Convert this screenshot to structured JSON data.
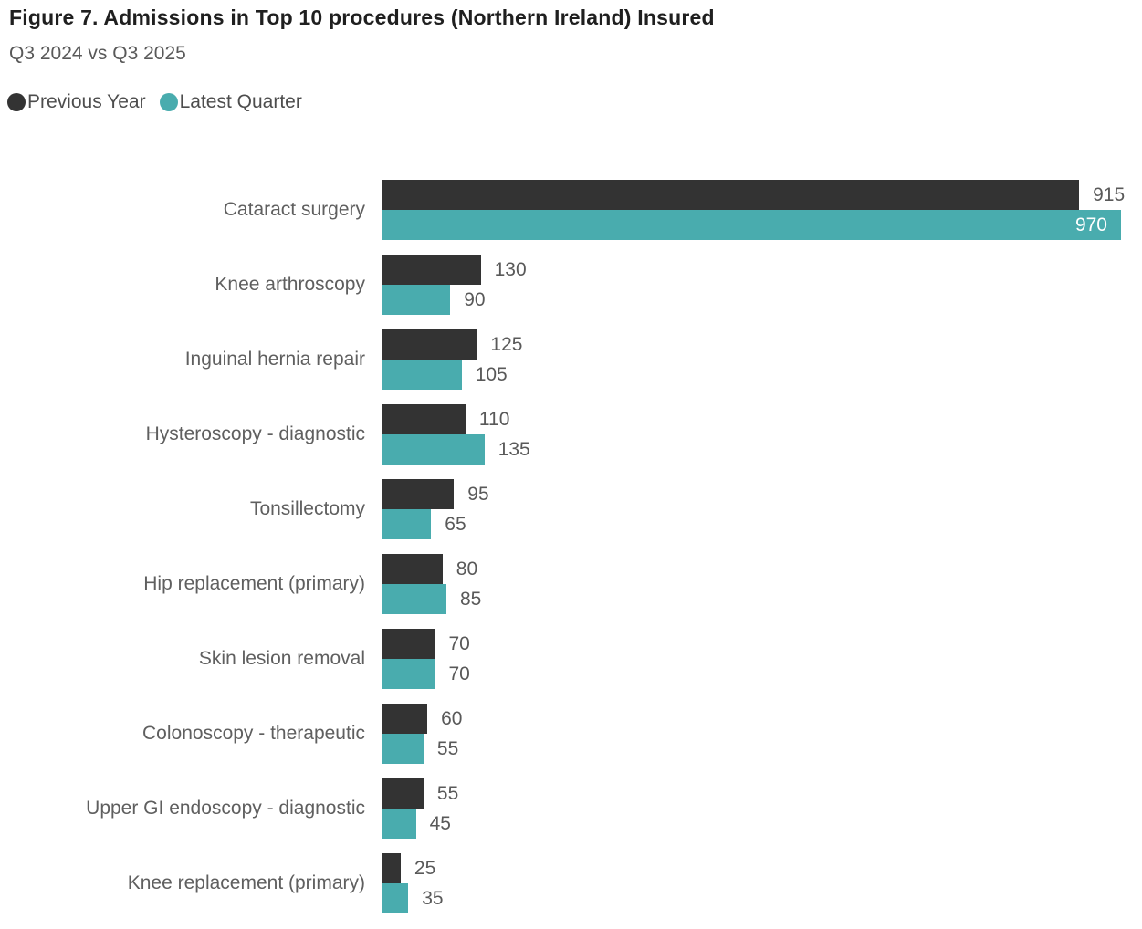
{
  "header": {
    "title": "Figure 7. Admissions in Top 10 procedures (Northern Ireland) Insured",
    "subtitle": "Q3 2024 vs Q3 2025"
  },
  "legend": {
    "items": [
      {
        "label": "Previous Year",
        "color": "#333333"
      },
      {
        "label": "Latest Quarter",
        "color": "#49ACAE"
      }
    ]
  },
  "colors": {
    "previous_year": "#333333",
    "latest_quarter": "#49ACAE",
    "value_label": "#595959",
    "value_label_inside": "#FFFFFF",
    "category_label": "#5F5F5F",
    "title": "#1F1F1F",
    "subtitle": "#595959",
    "background": "#FFFFFF"
  },
  "chart_data": {
    "type": "bar",
    "orientation": "horizontal",
    "title": "Figure 7. Admissions in Top 10 procedures (Northern Ireland) Insured",
    "subtitle": "Q3 2024 vs Q3 2025",
    "categories": [
      "Cataract surgery",
      "Knee arthroscopy",
      "Inguinal hernia repair",
      "Hysteroscopy - diagnostic",
      "Tonsillectomy",
      "Hip replacement (primary)",
      "Skin lesion removal",
      "Colonoscopy - therapeutic",
      "Upper GI endoscopy - diagnostic",
      "Knee replacement (primary)"
    ],
    "series": [
      {
        "name": "Previous Year",
        "color": "#333333",
        "values": [
          915,
          130,
          125,
          110,
          95,
          80,
          70,
          60,
          55,
          25
        ]
      },
      {
        "name": "Latest Quarter",
        "color": "#49ACAE",
        "values": [
          970,
          90,
          105,
          135,
          65,
          85,
          70,
          55,
          45,
          35
        ]
      }
    ],
    "xlim": [
      0,
      970
    ],
    "xlabel": "",
    "ylabel": "",
    "grid": false,
    "axes_visible": false,
    "legend_position": "top-left",
    "value_labels": true
  }
}
